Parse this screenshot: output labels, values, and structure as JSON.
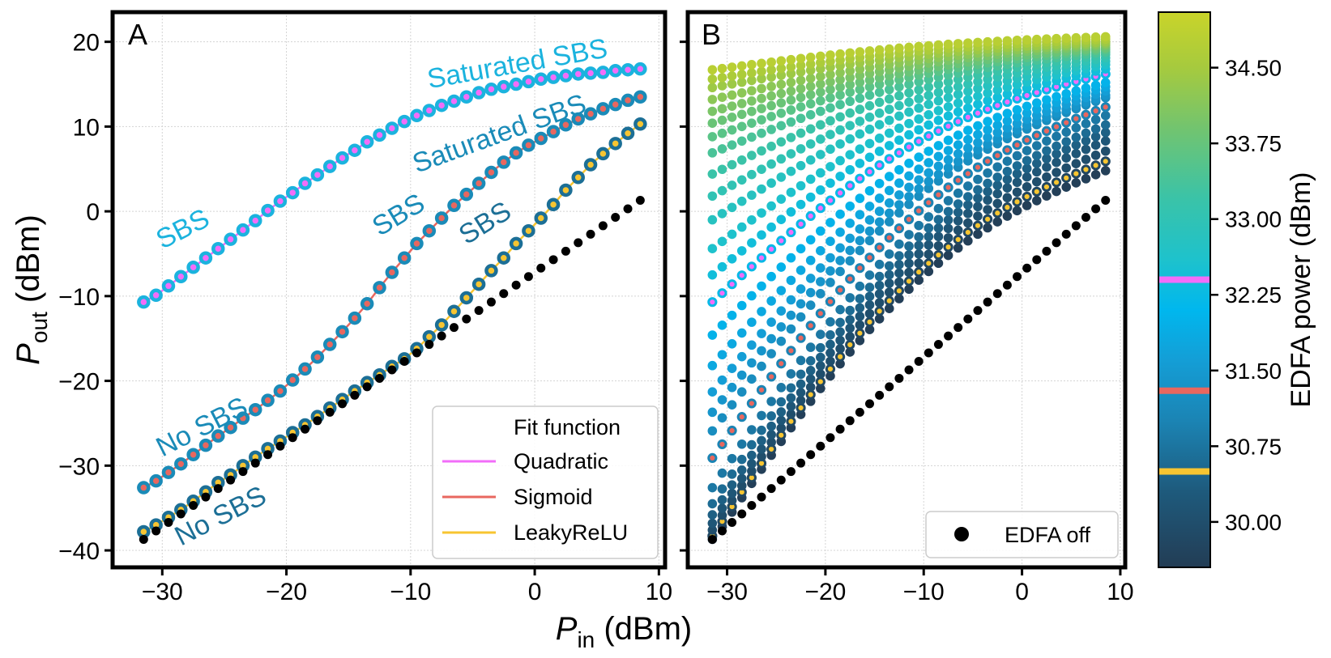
{
  "chart_data": [
    {
      "panel_label": "A",
      "type": "scatter",
      "xlabel": {
        "main": "P",
        "sub": "in",
        "unit": " (dBm)"
      },
      "ylabel": {
        "main": "P",
        "sub": "out",
        "unit": " (dBm)"
      },
      "xlim": [
        -34,
        10.5
      ],
      "ylim": [
        -42,
        23.5
      ],
      "xticks": [
        -30,
        -20,
        -10,
        0,
        10
      ],
      "yticks": [
        -40,
        -30,
        -20,
        -10,
        0,
        10,
        20
      ],
      "xtick_labels": [
        "−30",
        "−20",
        "−10",
        "0",
        "10"
      ],
      "ytick_labels": [
        "−40",
        "−30",
        "−20",
        "−10",
        "0",
        "10",
        "20"
      ],
      "grid": true,
      "legend": {
        "placement": "lower-right",
        "title": "Fit function",
        "entries": [
          {
            "label": "Quadratic",
            "color": "#f26df9"
          },
          {
            "label": "Sigmoid",
            "color": "#e8675f"
          },
          {
            "label": "LeakyReLU",
            "color": "#f7c531"
          }
        ]
      },
      "annotations": [
        {
          "text": "Saturated SBS",
          "x": -8.5,
          "y": 14.5,
          "angle": -10,
          "color": "#1bb3de"
        },
        {
          "text": "Saturated SBS",
          "x": -9.5,
          "y": 4.5,
          "angle": -20,
          "color": "#1a8bb8"
        },
        {
          "text": "SBS",
          "x": -30.0,
          "y": -4.5,
          "angle": -27,
          "color": "#1bb3de"
        },
        {
          "text": "SBS",
          "x": -12.5,
          "y": -3.0,
          "angle": -31,
          "color": "#1a8bb8"
        },
        {
          "text": "SBS",
          "x": -5.5,
          "y": -4.0,
          "angle": -32,
          "color": "#1c6f96"
        },
        {
          "text": "No SBS",
          "x": -30.0,
          "y": -29.0,
          "angle": -27,
          "color": "#1a8bb8"
        },
        {
          "text": "No SBS",
          "x": -28.5,
          "y": -39.5,
          "angle": -27,
          "color": "#1c6f96"
        }
      ],
      "series": [
        {
          "name": "Quadratic",
          "marker_face": "#f26df9",
          "marker_edge": "#1bb3de",
          "x": [
            -31.5,
            -30.5,
            -29.5,
            -28.5,
            -27.5,
            -26.5,
            -25.5,
            -24.5,
            -23.5,
            -22.5,
            -21.5,
            -20.5,
            -19.5,
            -18.5,
            -17.5,
            -16.5,
            -15.5,
            -14.5,
            -13.5,
            -12.5,
            -11.5,
            -10.5,
            -9.5,
            -8.5,
            -7.5,
            -6.5,
            -5.5,
            -4.5,
            -3.5,
            -2.5,
            -1.5,
            -0.5,
            0.5,
            1.5,
            2.5,
            3.5,
            4.5,
            5.5,
            6.5,
            7.5,
            8.5
          ],
          "y": [
            -10.7,
            -9.9,
            -8.8,
            -7.7,
            -6.6,
            -5.5,
            -4.4,
            -3.3,
            -2.2,
            -1.1,
            0.1,
            1.2,
            2.2,
            3.3,
            4.3,
            5.3,
            6.3,
            7.2,
            8.2,
            9.0,
            9.8,
            10.6,
            11.3,
            11.9,
            12.5,
            13.0,
            13.5,
            14.0,
            14.4,
            14.7,
            15.0,
            15.3,
            15.6,
            15.8,
            16.0,
            16.2,
            16.3,
            16.4,
            16.6,
            16.7,
            16.8
          ]
        },
        {
          "name": "Sigmoid",
          "marker_face": "#e8675f",
          "marker_edge": "#1a8bb8",
          "x": [
            -31.5,
            -30.5,
            -29.5,
            -28.5,
            -27.5,
            -26.5,
            -25.5,
            -24.5,
            -23.5,
            -22.5,
            -21.5,
            -20.5,
            -19.5,
            -18.5,
            -17.5,
            -16.5,
            -15.5,
            -14.5,
            -13.5,
            -12.5,
            -11.5,
            -10.5,
            -9.5,
            -8.5,
            -7.5,
            -6.5,
            -5.5,
            -4.5,
            -3.5,
            -2.5,
            -1.5,
            -0.5,
            0.5,
            1.5,
            2.5,
            3.5,
            4.5,
            5.5,
            6.5,
            7.5,
            8.5
          ],
          "y": [
            -32.6,
            -31.8,
            -30.8,
            -29.8,
            -28.7,
            -27.6,
            -26.5,
            -25.5,
            -24.4,
            -23.4,
            -22.3,
            -21.2,
            -19.9,
            -18.6,
            -17.2,
            -15.7,
            -14.2,
            -12.6,
            -10.9,
            -9.0,
            -7.2,
            -5.5,
            -3.8,
            -2.3,
            -0.8,
            0.7,
            2.0,
            3.3,
            4.6,
            5.8,
            6.9,
            7.8,
            8.6,
            9.4,
            10.2,
            10.9,
            11.5,
            12.1,
            12.6,
            13.1,
            13.5
          ]
        },
        {
          "name": "LeakyReLU",
          "marker_face": "#f7c531",
          "marker_edge": "#1c6f96",
          "x": [
            -31.5,
            -30.5,
            -29.5,
            -28.5,
            -27.5,
            -26.5,
            -25.5,
            -24.5,
            -23.5,
            -22.5,
            -21.5,
            -20.5,
            -19.5,
            -18.5,
            -17.5,
            -16.5,
            -15.5,
            -14.5,
            -13.5,
            -12.5,
            -11.5,
            -10.5,
            -9.5,
            -8.5,
            -7.5,
            -6.5,
            -5.5,
            -4.5,
            -3.5,
            -2.5,
            -1.5,
            -0.5,
            0.5,
            1.5,
            2.5,
            3.5,
            4.5,
            5.5,
            6.5,
            7.5,
            8.5
          ],
          "y": [
            -37.8,
            -37.0,
            -36.1,
            -35.2,
            -34.2,
            -33.1,
            -32.0,
            -31.1,
            -30.0,
            -29.0,
            -28.0,
            -27.1,
            -26.1,
            -25.2,
            -24.2,
            -23.2,
            -22.2,
            -21.2,
            -20.2,
            -19.3,
            -18.3,
            -17.4,
            -16.2,
            -14.8,
            -13.4,
            -11.8,
            -10.2,
            -8.6,
            -7.0,
            -5.5,
            -3.8,
            -2.3,
            -0.8,
            0.8,
            2.5,
            4.0,
            5.5,
            6.8,
            8.0,
            9.2,
            10.3
          ]
        },
        {
          "name": "EDFA off",
          "marker_face": "#000000",
          "x": [
            -31.5,
            -30.5,
            -29.5,
            -28.5,
            -27.5,
            -26.5,
            -25.5,
            -24.5,
            -23.5,
            -22.5,
            -21.5,
            -20.5,
            -19.5,
            -18.5,
            -17.5,
            -16.5,
            -15.5,
            -14.5,
            -13.5,
            -12.5,
            -11.5,
            -10.5,
            -9.5,
            -8.5,
            -7.5,
            -6.5,
            -5.5,
            -4.5,
            -3.5,
            -2.5,
            -1.5,
            -0.5,
            0.5,
            1.5,
            2.5,
            3.5,
            4.5,
            5.5,
            6.5,
            7.5,
            8.5
          ],
          "y": [
            -38.7,
            -37.7,
            -36.7,
            -35.7,
            -34.7,
            -33.7,
            -32.7,
            -31.7,
            -30.7,
            -29.7,
            -28.7,
            -27.7,
            -26.7,
            -25.7,
            -24.7,
            -23.7,
            -22.7,
            -21.7,
            -20.7,
            -19.7,
            -18.7,
            -17.7,
            -16.7,
            -15.7,
            -14.7,
            -13.7,
            -12.7,
            -11.7,
            -10.7,
            -9.7,
            -8.7,
            -7.7,
            -6.7,
            -5.7,
            -4.7,
            -3.7,
            -2.7,
            -1.7,
            -0.7,
            0.3,
            1.3
          ]
        }
      ]
    },
    {
      "panel_label": "B",
      "type": "scatter",
      "xlim": [
        -34,
        10.5
      ],
      "ylim": [
        -42,
        23.5
      ],
      "xticks": [
        -30,
        -20,
        -10,
        0,
        10
      ],
      "xtick_labels": [
        "−30",
        "−20",
        "−10",
        "0",
        "10"
      ],
      "grid": true,
      "legend": {
        "placement": "lower-right",
        "entries": [
          {
            "label": "EDFA off",
            "color": "#000000"
          }
        ]
      },
      "description_x_values": "Pin from -31.5 to 8.5 in 1 dBm steps for every EDFA setting",
      "edfa_off_curve": {
        "y_at_min": -38.7,
        "slope": 1.0
      },
      "family": {
        "edfa_power_dBm": [
          29.6,
          29.8,
          30.0,
          30.2,
          30.4,
          30.6,
          30.8,
          31.0,
          31.2,
          31.4,
          31.6,
          31.8,
          32.0,
          32.2,
          32.4,
          32.6,
          32.8,
          33.0,
          33.2,
          33.4,
          33.6,
          33.8,
          34.0,
          34.2,
          34.4,
          34.6,
          34.8
        ],
        "pout_at_min_pin_dBm": [
          -38.9,
          -38.3,
          -37.6,
          -36.8,
          -35.8,
          -34.5,
          -32.6,
          -29.1,
          -25.9,
          -23.7,
          -21.3,
          -18.2,
          -14.6,
          -10.7,
          -7.5,
          -4.4,
          -1.0,
          1.8,
          4.4,
          6.9,
          8.8,
          10.4,
          11.8,
          13.2,
          14.6,
          15.6,
          16.7
        ],
        "pout_at_max_pin_dBm": [
          4.8,
          5.9,
          7.1,
          8.3,
          9.3,
          10.2,
          11.3,
          12.3,
          13.4,
          13.7,
          14.2,
          14.7,
          15.2,
          16.2,
          16.8,
          17.3,
          17.7,
          18.1,
          18.5,
          18.8,
          19.1,
          19.3,
          19.6,
          19.8,
          20.0,
          20.3,
          20.6
        ],
        "highlighted": [
          {
            "edfa_power_dBm": 32.2,
            "face": "#f26df9"
          },
          {
            "edfa_power_dBm": 31.0,
            "face": "#e8675f"
          },
          {
            "edfa_power_dBm": 29.8,
            "face": "#f7c531"
          }
        ]
      }
    },
    {
      "type": "colorbar",
      "label": "EDFA power (dBm)",
      "range": [
        29.55,
        35.05
      ],
      "ticks": [
        30.0,
        30.75,
        31.5,
        32.25,
        33.0,
        33.75,
        34.5
      ],
      "tick_labels": [
        "30.00",
        "30.75",
        "31.50",
        "32.25",
        "33.00",
        "33.75",
        "34.50"
      ],
      "colormap": [
        {
          "v": 29.55,
          "c": "#233d55"
        },
        {
          "v": 30.3,
          "c": "#1e5a7c"
        },
        {
          "v": 31.0,
          "c": "#1b84b4"
        },
        {
          "v": 31.6,
          "c": "#149ed6"
        },
        {
          "v": 32.1,
          "c": "#00b7ee"
        },
        {
          "v": 32.6,
          "c": "#1ec2cc"
        },
        {
          "v": 33.2,
          "c": "#3ac3a8"
        },
        {
          "v": 33.9,
          "c": "#72c46f"
        },
        {
          "v": 34.5,
          "c": "#a6ca3e"
        },
        {
          "v": 35.05,
          "c": "#c9d42a"
        }
      ],
      "markers": [
        {
          "v": 32.4,
          "c": "#f26df9"
        },
        {
          "v": 31.3,
          "c": "#e8675f"
        },
        {
          "v": 30.5,
          "c": "#f7c531"
        }
      ]
    }
  ]
}
